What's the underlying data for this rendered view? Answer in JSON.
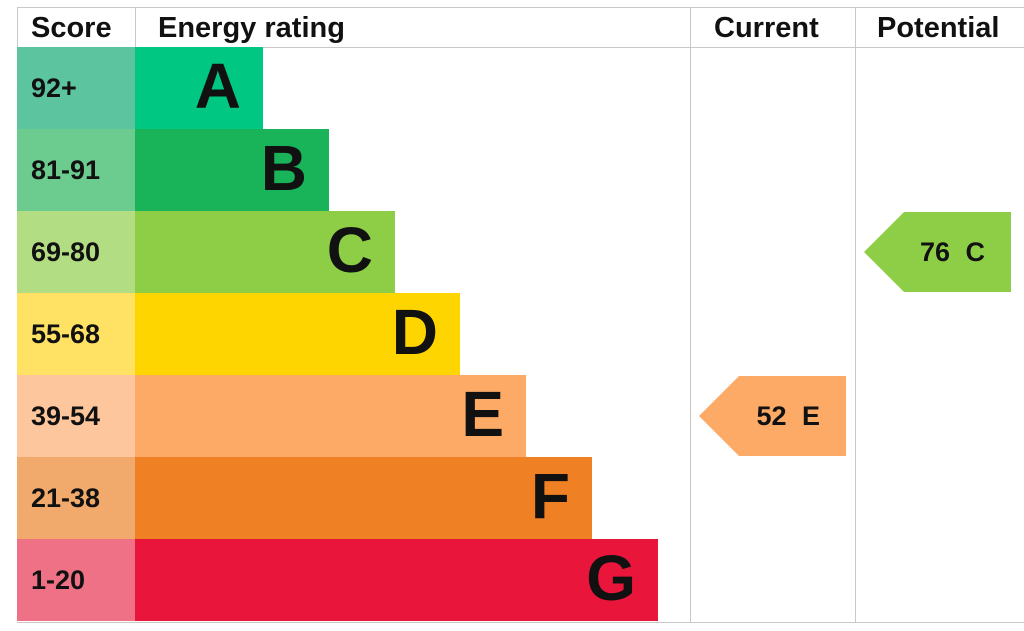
{
  "headers": {
    "score": "Score",
    "rating": "Energy rating",
    "current": "Current",
    "potential": "Potential"
  },
  "chart_data": {
    "type": "bar",
    "bands": [
      {
        "letter": "A",
        "range": "92+",
        "color": "#00c781",
        "score_color": "#5dc4a0"
      },
      {
        "letter": "B",
        "range": "81-91",
        "color": "#19b459",
        "score_color": "#6ccb8e"
      },
      {
        "letter": "C",
        "range": "69-80",
        "color": "#8dce46",
        "score_color": "#b3dd83"
      },
      {
        "letter": "D",
        "range": "55-68",
        "color": "#ffd500",
        "score_color": "#ffe263"
      },
      {
        "letter": "E",
        "range": "39-54",
        "color": "#fcaa65",
        "score_color": "#fdc69c"
      },
      {
        "letter": "F",
        "range": "21-38",
        "color": "#ef8023",
        "score_color": "#f2a96c"
      },
      {
        "letter": "G",
        "range": "1-20",
        "color": "#e9153b",
        "score_color": "#ee7186"
      }
    ],
    "current": {
      "value": 52,
      "band": "E",
      "label": "52 E"
    },
    "potential": {
      "value": 76,
      "band": "C",
      "label": "76 C"
    }
  }
}
